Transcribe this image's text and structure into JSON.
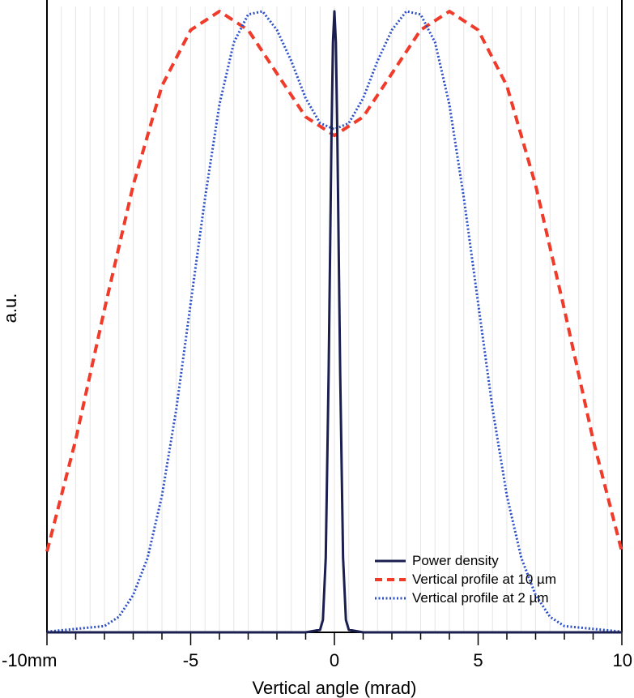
{
  "chart_data": {
    "type": "line",
    "title": "",
    "xlabel": "Vertical angle (mrad)",
    "ylabel": "a.u.",
    "xlim": [
      -10,
      10
    ],
    "ylim": [
      0,
      1.0
    ],
    "x_tick_labels": [
      {
        "value": -10,
        "label": "-10mm"
      },
      {
        "value": -5,
        "label": "-5"
      },
      {
        "value": 0,
        "label": "0"
      },
      {
        "value": 5,
        "label": "5"
      },
      {
        "value": 10,
        "label": "10"
      }
    ],
    "x_minor_step": 1,
    "grid": "vertical",
    "legend_position": "bottom-right",
    "series": [
      {
        "name": "Power density",
        "color": "#1a1f4f",
        "style": "solid",
        "x": [
          -10,
          -1,
          -0.5,
          -0.4,
          -0.3,
          -0.2,
          -0.1,
          -0.05,
          0,
          0.05,
          0.1,
          0.2,
          0.3,
          0.4,
          0.5,
          1,
          10
        ],
        "y": [
          0,
          0,
          0.004,
          0.02,
          0.12,
          0.42,
          0.8,
          0.95,
          1.0,
          0.95,
          0.8,
          0.42,
          0.12,
          0.02,
          0.004,
          0,
          0
        ]
      },
      {
        "name": "Vertical profile at 10 µm",
        "color": "#f03a2a",
        "style": "dashed",
        "x": [
          -10,
          -9,
          -8,
          -7,
          -6,
          -5,
          -4,
          -3,
          -2,
          -1,
          0,
          1,
          2,
          3,
          4,
          5,
          6,
          7,
          8,
          9,
          10
        ],
        "y": [
          0.13,
          0.31,
          0.52,
          0.72,
          0.88,
          0.97,
          1.0,
          0.97,
          0.9,
          0.83,
          0.8,
          0.83,
          0.9,
          0.97,
          1.0,
          0.97,
          0.88,
          0.72,
          0.52,
          0.31,
          0.13
        ]
      },
      {
        "name": "Vertical profile at 2 µm",
        "color": "#2b4fc7",
        "style": "dotted",
        "x": [
          -10,
          -8,
          -7.5,
          -7,
          -6.5,
          -6,
          -5.5,
          -5,
          -4.5,
          -4,
          -3.5,
          -3,
          -2.5,
          -2,
          -1.5,
          -1,
          -0.5,
          0,
          0.5,
          1,
          1.5,
          2,
          2.5,
          3,
          3.5,
          4,
          4.5,
          5,
          5.5,
          6,
          6.5,
          7,
          7.5,
          8,
          10
        ],
        "y": [
          0.001,
          0.01,
          0.025,
          0.06,
          0.12,
          0.22,
          0.36,
          0.53,
          0.7,
          0.85,
          0.95,
          0.995,
          1.0,
          0.97,
          0.92,
          0.86,
          0.82,
          0.81,
          0.82,
          0.86,
          0.92,
          0.97,
          1.0,
          0.995,
          0.95,
          0.85,
          0.7,
          0.53,
          0.36,
          0.22,
          0.12,
          0.06,
          0.025,
          0.01,
          0.001
        ]
      }
    ]
  },
  "legend": {
    "items": [
      {
        "prefix": "Power density",
        "unit": ""
      },
      {
        "prefix": "Vertical profile at 10 ",
        "unit": "µm"
      },
      {
        "prefix": "Vertical profile at 2 ",
        "unit": "µm"
      }
    ]
  }
}
